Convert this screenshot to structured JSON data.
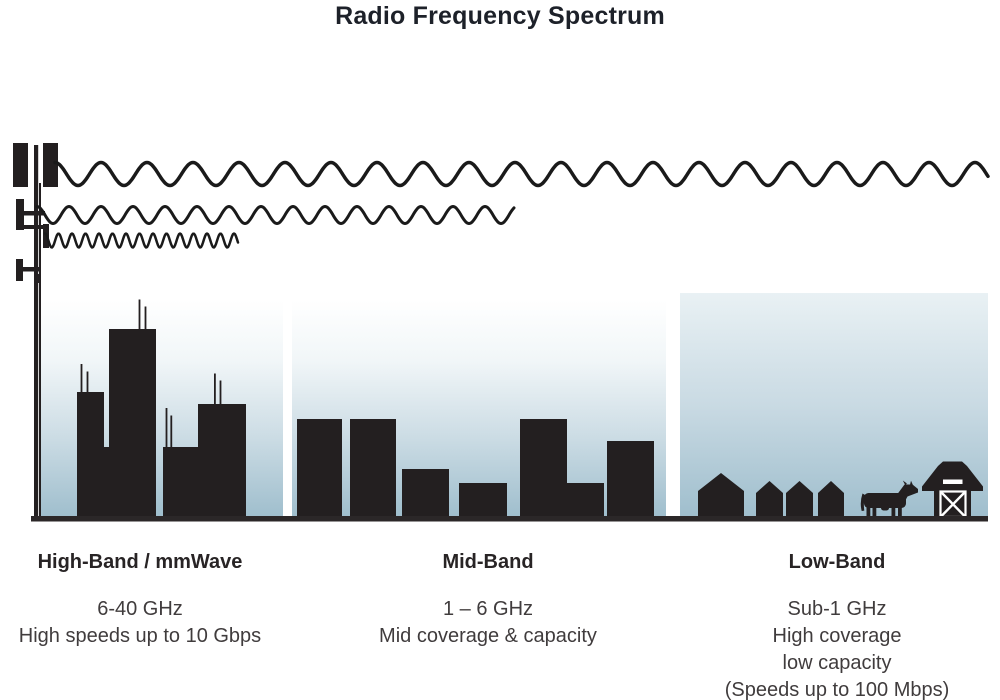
{
  "title": "Radio Frequency Spectrum",
  "bands": [
    {
      "name": "High-Band / mmWave",
      "frequency": "6-40 GHz",
      "details": [
        "High speeds up to 10 Gbps"
      ]
    },
    {
      "name": "Mid-Band",
      "frequency": "1 – 6 GHz",
      "details": [
        "Mid coverage & capacity"
      ]
    },
    {
      "name": "Low-Band",
      "frequency": "Sub-1 GHz",
      "details": [
        "High coverage",
        "low capacity",
        "(Speeds up to 100 Mbps)"
      ]
    }
  ],
  "scene": {
    "transmitter": "cell-tower",
    "waves": [
      "long-wavelength-wave",
      "medium-wavelength-wave",
      "short-wavelength-wave"
    ],
    "settings": [
      "dense-city-skyscrapers",
      "mid-rise-city-buildings",
      "rural-houses-cow-barn"
    ]
  },
  "colors": {
    "silhouette": "#231f20",
    "wave_stroke": "#1a1a1a",
    "sky_top": "#ffffff",
    "sky_bottom": "#9fbecd",
    "ground": "#2b2728",
    "title_text": "#1d2129",
    "body_text": "#403c3d"
  }
}
